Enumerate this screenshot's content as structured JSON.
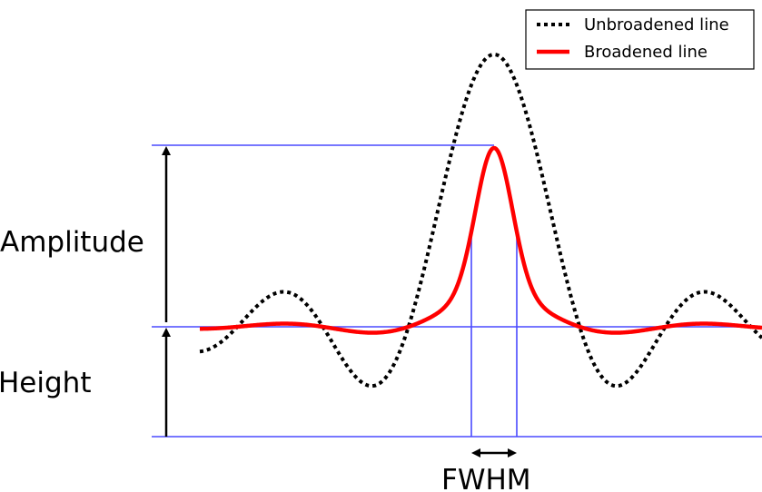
{
  "figure": {
    "labels": {
      "amplitude": "Amplitude",
      "height": "Height",
      "fwhm": "FWHM"
    },
    "legend": {
      "items": [
        {
          "label": "Unbroadened line",
          "style": "dotted",
          "color": "#000000"
        },
        {
          "label": "Broadened line",
          "style": "solid",
          "color": "#ff0000"
        }
      ]
    },
    "colors": {
      "guides": "#4a4aff",
      "unbroadened": "#000000",
      "broadened": "#ff0000",
      "arrows": "#000000"
    }
  }
}
